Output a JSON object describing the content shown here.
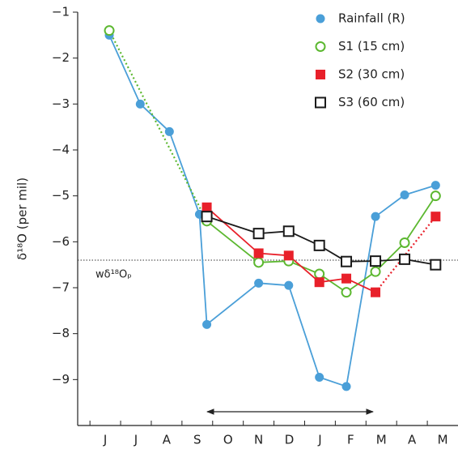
{
  "chart_data": {
    "type": "line",
    "ylabel": "δ¹⁸O (per mil)",
    "xlim": [
      -0.9,
      11.5
    ],
    "ylim": [
      -10,
      -1
    ],
    "xticks": [
      {
        "value": 0,
        "label": "J"
      },
      {
        "value": 1,
        "label": "J"
      },
      {
        "value": 2,
        "label": "A"
      },
      {
        "value": 3,
        "label": "S"
      },
      {
        "value": 4,
        "label": "O"
      },
      {
        "value": 5,
        "label": "N"
      },
      {
        "value": 6,
        "label": "D"
      },
      {
        "value": 7,
        "label": "J"
      },
      {
        "value": 8,
        "label": "F"
      },
      {
        "value": 9,
        "label": "M"
      },
      {
        "value": 10,
        "label": "A"
      },
      {
        "value": 11,
        "label": "M"
      }
    ],
    "yticks": [
      {
        "value": -1,
        "label": "−1"
      },
      {
        "value": -2,
        "label": "−2"
      },
      {
        "value": -3,
        "label": "−3"
      },
      {
        "value": -4,
        "label": "−4"
      },
      {
        "value": -5,
        "label": "−5"
      },
      {
        "value": -6,
        "label": "−6"
      },
      {
        "value": -7,
        "label": "−7"
      },
      {
        "value": -8,
        "label": "−8"
      },
      {
        "value": -9,
        "label": "−9"
      }
    ],
    "reference_line": {
      "value": -6.4,
      "label": "wδ¹⁸Oₚ"
    },
    "legend": "upper right",
    "series": [
      {
        "name": "Rainfall (R)",
        "color": "#4a9fd8",
        "marker": "filled-circle",
        "x": [
          0.13,
          1.14,
          2.09,
          3.07,
          3.31,
          5.0,
          5.98,
          6.98,
          7.86,
          8.81,
          9.76,
          10.77
        ],
        "values": [
          -1.5,
          -3.0,
          -3.6,
          -5.4,
          -7.8,
          -6.9,
          -6.95,
          -8.95,
          -9.15,
          -5.45,
          -4.98,
          -4.77
        ]
      },
      {
        "name": "S1 (15 cm)",
        "color": "#5cb830",
        "marker": "open-circle",
        "dotted_segments": [
          0
        ],
        "x": [
          0.13,
          3.31,
          5.0,
          5.98,
          6.98,
          7.86,
          8.81,
          9.76,
          10.77
        ],
        "values": [
          -1.4,
          -5.55,
          -6.45,
          -6.42,
          -6.7,
          -7.1,
          -6.65,
          -6.02,
          -5.0
        ]
      },
      {
        "name": "S2 (30 cm)",
        "color": "#e8202a",
        "marker": "filled-square",
        "dotted_segments": [
          5
        ],
        "x": [
          3.31,
          5.0,
          5.98,
          6.98,
          7.86,
          8.81,
          10.77
        ],
        "values": [
          -5.25,
          -6.25,
          -6.3,
          -6.88,
          -6.8,
          -7.1,
          -5.45
        ]
      },
      {
        "name": "S3 (60 cm)",
        "color": "#1a1a1a",
        "marker": "open-square",
        "x": [
          3.31,
          5.0,
          5.98,
          6.98,
          7.86,
          8.81,
          9.76,
          10.77
        ],
        "values": [
          -5.45,
          -5.82,
          -5.77,
          -6.08,
          -6.43,
          -6.42,
          -6.38,
          -6.5
        ]
      }
    ]
  }
}
